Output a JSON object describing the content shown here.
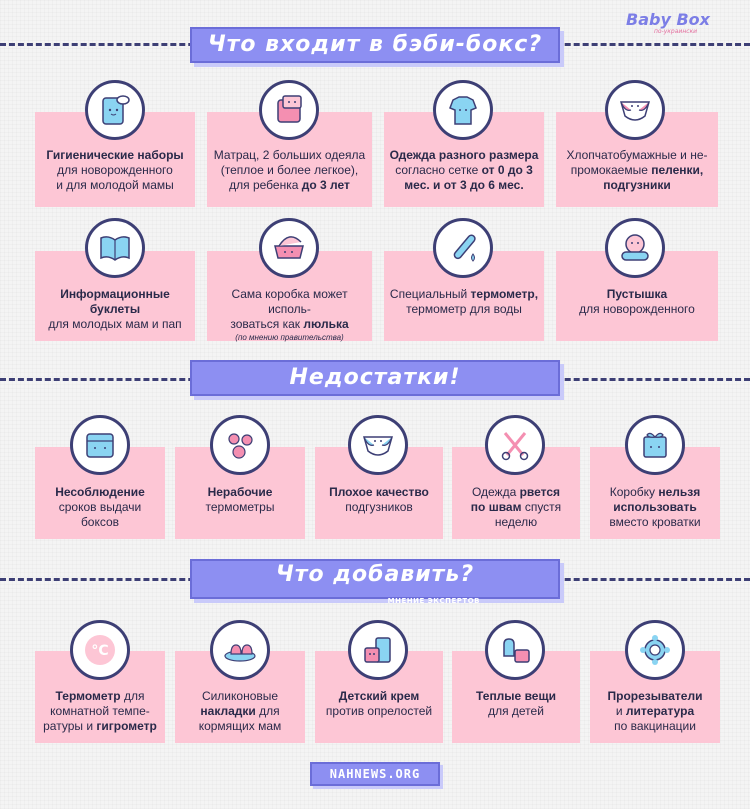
{
  "brand": {
    "name": "Baby Box",
    "tagline": "по-украински"
  },
  "sections": {
    "s1": {
      "title": "Что входит в бэби-бокс?"
    },
    "s2": {
      "title": "Недостатки!"
    },
    "s3": {
      "title": "Что добавить?",
      "subtitle": "МНЕНИЕ ЭКСПЕРТОВ"
    }
  },
  "items": {
    "hygiene": {
      "b1": "Гигиенические наборы",
      "t2": "для новорожденного",
      "t3": "и для молодой мамы",
      "icon": "toilet-paper-icon"
    },
    "mattress": {
      "t1": "Матрац, 2 больших одеяла",
      "t2": "(теплое и более легкое),",
      "t3a": "для ребенка ",
      "b3": "до 3 лет",
      "icon": "blanket-icon"
    },
    "clothes": {
      "b1": "Одежда разного размера",
      "t2a": "согласно сетке ",
      "b2": "от 0 до 3",
      "b3a": "мес. и от 3 до 6 мес.",
      "icon": "bodysuit-icon"
    },
    "diapers": {
      "t1": "Хлопчатобумажные и не-",
      "t2a": "промокаемые ",
      "b2": "пеленки,",
      "b3": "подгузники",
      "icon": "diaper-icon"
    },
    "booklets": {
      "b1": "Информационные буклеты",
      "t2": "для молодых мам и пап",
      "icon": "book-icon"
    },
    "box": {
      "t1": "Сама коробка может исполь-",
      "t2a": "зоваться как ",
      "b2": "люлька",
      "note": "(по мнению правительства)",
      "icon": "cradle-icon"
    },
    "thermometer": {
      "t1a": "Специальный ",
      "b1": "термометр,",
      "t2": "термометр для воды",
      "icon": "thermometer-icon"
    },
    "pacifier": {
      "b1": "Пустышка",
      "t2": "для новорожденного",
      "icon": "pacifier-icon"
    },
    "terms": {
      "b1": "Несоблюдение",
      "t2": "сроков выдачи",
      "t3": "боксов",
      "icon": "calendar-icon"
    },
    "broken": {
      "b1": "Нерабочие",
      "t2": "термометры",
      "icon": "flower-icon"
    },
    "quality": {
      "b1": "Плохое качество",
      "t2": "подгузников",
      "icon": "diaper-icon"
    },
    "tear": {
      "t1a": "Одежда ",
      "b1": "рвется",
      "b2": "по швам",
      "t2a": " спустя",
      "t3": "неделю",
      "icon": "scissors-icon"
    },
    "nobed": {
      "t1a": "Коробку ",
      "b1": "нельзя",
      "b2": "использовать",
      "t3": "вместо кроватки",
      "icon": "gift-box-icon"
    },
    "roomthermo": {
      "b1": "Термометр",
      "t1b": " для",
      "t2": "комнатной темпе-",
      "t3a": "ратуры и ",
      "b3": "гигрометр",
      "icon": "celsius-icon"
    },
    "pads": {
      "t1": "Силиконовые",
      "b2": "накладки",
      "t2a": " для",
      "t3": "кормящих мам",
      "icon": "nipple-pads-icon"
    },
    "cream": {
      "b1": "Детский крем",
      "t2": "против опрелостей",
      "icon": "cream-icon"
    },
    "warm": {
      "b1": "Теплые вещи",
      "t2": "для детей",
      "icon": "mittens-icon"
    },
    "teethers": {
      "b1": "Прорезыватели",
      "t2a": "и ",
      "b2": "литература",
      "t3": "по вакцинации",
      "icon": "teether-icon"
    }
  },
  "footer": {
    "label": "NAHNEWS.ORG"
  },
  "colors": {
    "card": "#fdc6d5",
    "banner": "#8d8ff2",
    "outline": "#3d3f75",
    "pink": "#f48fb1",
    "blue": "#8ad4f2"
  }
}
